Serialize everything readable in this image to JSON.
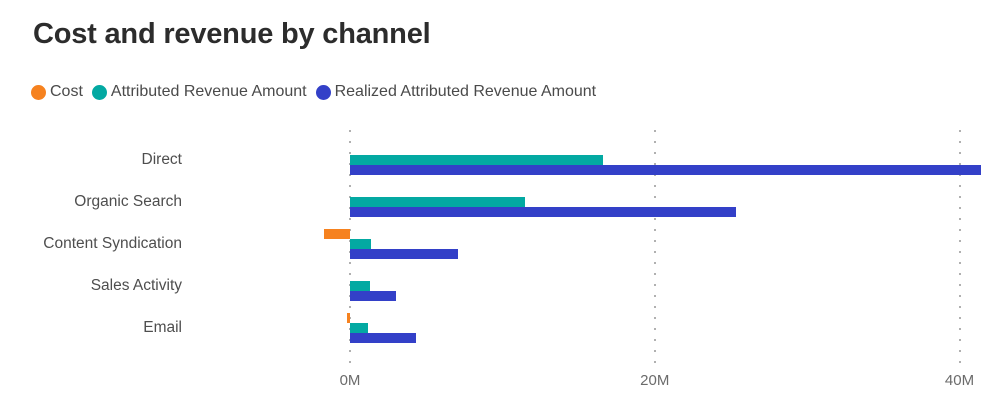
{
  "title": "Cost and revenue by channel",
  "colors": {
    "title_text": "#2c2c2c",
    "legend_text": "#4a4a4a",
    "category_text": "#4e4e4e",
    "axis_text": "#6b6b6b",
    "grid_dots": "#b0b0b0",
    "background": "#ffffff"
  },
  "chart_data": {
    "type": "bar",
    "orientation": "horizontal",
    "title": "Cost and revenue by channel",
    "unit": "millions",
    "categories": [
      "Direct",
      "Organic Search",
      "Content Syndication",
      "Sales Activity",
      "Email"
    ],
    "series": [
      {
        "name": "Cost",
        "color": "#f6821f",
        "values": [
          0,
          0,
          -1.7,
          0,
          -0.2
        ]
      },
      {
        "name": "Attributed Revenue Amount",
        "color": "#03a9a2",
        "values": [
          16.6,
          11.5,
          1.4,
          1.3,
          1.2
        ]
      },
      {
        "name": "Realized Attributed Revenue Amount",
        "color": "#3340c8",
        "values": [
          41.4,
          25.3,
          7.1,
          3.0,
          4.3
        ]
      }
    ],
    "x_axis": {
      "ticks": [
        0,
        20,
        40
      ],
      "tick_labels": [
        "0M",
        "20M",
        "40M"
      ],
      "range_visible": [
        -10.8,
        42.6
      ],
      "gridlines": "dotted"
    },
    "legend_position": "top-left",
    "grid": true
  }
}
